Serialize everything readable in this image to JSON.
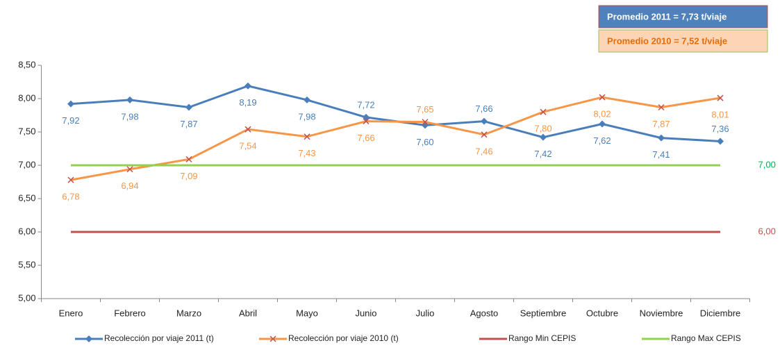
{
  "chart_data": {
    "type": "line",
    "annotations": [
      "Promedio 2011 = 7,73 t/viaje",
      "Promedio 2010 = 7,52 t/viaje"
    ],
    "categories": [
      "Enero",
      "Febrero",
      "Marzo",
      "Abril",
      "Mayo",
      "Junio",
      "Julio",
      "Agosto",
      "Septiembre",
      "Octubre",
      "Noviembre",
      "Diciembre"
    ],
    "series": [
      {
        "name": "Recolección por viaje 2011 (t)",
        "color": "#4a7ebb",
        "marker": "diamond",
        "values": [
          7.92,
          7.98,
          7.87,
          8.19,
          7.98,
          7.72,
          7.6,
          7.66,
          7.42,
          7.62,
          7.41,
          7.36
        ],
        "value_labels": [
          "7,92",
          "7,98",
          "7,87",
          "8,19",
          "7,98",
          "7,72",
          "7,60",
          "7,66",
          "7,42",
          "7,62",
          "7,41",
          "7,36"
        ]
      },
      {
        "name": "Recolección por viaje 2010 (t)",
        "color": "#f79646",
        "marker": "x",
        "values": [
          6.78,
          6.94,
          7.09,
          7.54,
          7.43,
          7.66,
          7.65,
          7.46,
          7.8,
          8.02,
          7.87,
          8.01
        ],
        "value_labels": [
          "6,78",
          "6,94",
          "7,09",
          "7,54",
          "7,43",
          "7,66",
          "7,65",
          "7,46",
          "7,80",
          "8,02",
          "7,87",
          "8,01"
        ]
      },
      {
        "name": "Rango Min CEPIS",
        "color": "#c0504d",
        "values": [
          6,
          6,
          6,
          6,
          6,
          6,
          6,
          6,
          6,
          6,
          6,
          6
        ],
        "value_labels": [
          null,
          null,
          null,
          null,
          null,
          null,
          null,
          null,
          null,
          null,
          null,
          "6,00"
        ]
      },
      {
        "name": "Rango Max CEPIS",
        "color": "#92d050",
        "values": [
          7,
          7,
          7,
          7,
          7,
          7,
          7,
          7,
          7,
          7,
          7,
          7
        ],
        "value_labels": [
          null,
          null,
          null,
          null,
          null,
          null,
          null,
          null,
          null,
          null,
          null,
          "7,00"
        ]
      }
    ],
    "ylim": [
      5,
      8.5
    ],
    "yticks": [
      {
        "value": 5,
        "label": "5,00"
      },
      {
        "value": 5.5,
        "label": "5,50"
      },
      {
        "value": 6,
        "label": "6,00"
      },
      {
        "value": 6.5,
        "label": "6,50"
      },
      {
        "value": 7,
        "label": "7,00"
      },
      {
        "value": 7.5,
        "label": "7,50"
      },
      {
        "value": 8,
        "label": "8,00"
      },
      {
        "value": 8.5,
        "label": "8,50"
      }
    ],
    "grid": false,
    "legend": "bottom"
  }
}
